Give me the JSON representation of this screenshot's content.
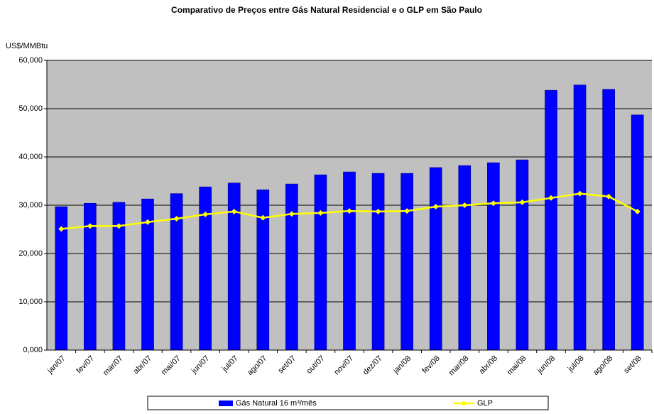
{
  "chart_data": {
    "type": "bar_line",
    "title": "Comparativo de Preços entre Gás Natural Residencial e o GLP em São Paulo",
    "y_label": "US$/MMBtu",
    "categories": [
      "jan/07",
      "fev/07",
      "mar/07",
      "abr/07",
      "mai/07",
      "jun/07",
      "jul/07",
      "ago/07",
      "set/07",
      "out/07",
      "nov/07",
      "dez/07",
      "jan/08",
      "fev/08",
      "mar/08",
      "abr/08",
      "mai/08",
      "jun/08",
      "jul/08",
      "ago/08",
      "set/08"
    ],
    "series": [
      {
        "name": "Gás Natural 16 m³/mês",
        "type": "bar",
        "color": "#0000ff",
        "values": [
          29.7,
          30.4,
          30.6,
          31.3,
          32.4,
          33.8,
          34.6,
          33.2,
          34.4,
          36.3,
          36.9,
          36.6,
          36.6,
          37.8,
          38.2,
          38.8,
          39.4,
          53.8,
          54.9,
          54.0,
          48.7
        ]
      },
      {
        "name": "GLP",
        "type": "line",
        "color": "#ffff00",
        "values": [
          25.1,
          25.7,
          25.7,
          26.5,
          27.2,
          28.1,
          28.7,
          27.4,
          28.2,
          28.4,
          28.8,
          28.7,
          28.8,
          29.7,
          30.0,
          30.4,
          30.6,
          31.5,
          32.4,
          31.8,
          28.7
        ]
      }
    ],
    "ylim": [
      0,
      60
    ],
    "yticks": [
      {
        "value": 0,
        "label": "0,000"
      },
      {
        "value": 10,
        "label": "10,000"
      },
      {
        "value": 20,
        "label": "20,000"
      },
      {
        "value": 30,
        "label": "30,000"
      },
      {
        "value": 40,
        "label": "40,000"
      },
      {
        "value": 50,
        "label": "50,000"
      },
      {
        "value": 60,
        "label": "60,000"
      }
    ],
    "grid": true,
    "legend": "bottom",
    "plot_background": "#c0c0c0"
  }
}
